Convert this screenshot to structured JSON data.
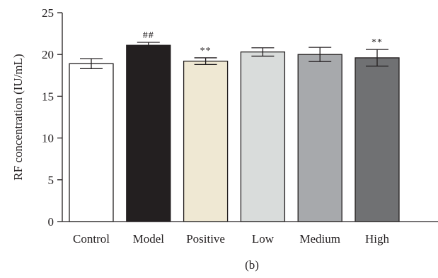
{
  "chart_data": {
    "type": "bar",
    "categories": [
      "Control",
      "Model",
      "Positive",
      "Low",
      "Medium",
      "High"
    ],
    "values": [
      18.9,
      21.1,
      19.2,
      20.3,
      20.0,
      19.6
    ],
    "errors": [
      0.6,
      0.35,
      0.4,
      0.5,
      0.85,
      1.0
    ],
    "annotations": [
      "",
      "##",
      "**",
      "",
      "",
      "**"
    ],
    "bar_colors": [
      "#ffffff",
      "#231f20",
      "#efe8d3",
      "#d9dcdb",
      "#a7a9ac",
      "#707173"
    ],
    "ylabel": "RF concentration (IU/mL)",
    "xlabel": "",
    "ylim": [
      0,
      25
    ],
    "yticks": [
      "0",
      "5",
      "10",
      "15",
      "20",
      "25"
    ],
    "caption": "(b)",
    "grid": false
  }
}
